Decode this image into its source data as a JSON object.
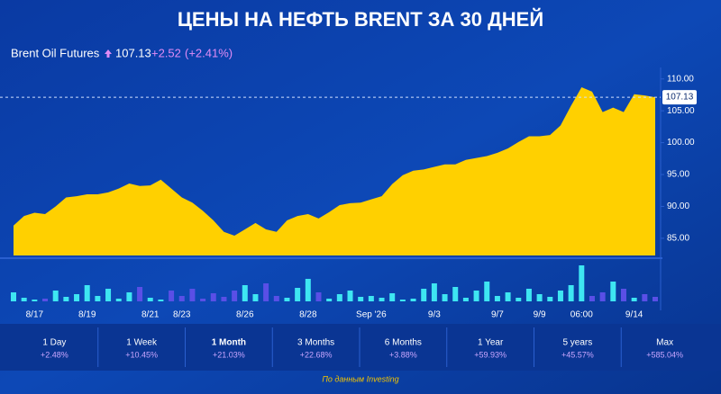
{
  "chart_data": {
    "type": "area",
    "title": "ЦЕНЫ НА НЕФТЬ BRENT ЗА 30 ДНЕЙ",
    "header": {
      "name": "Brent Oil Futures",
      "price": 107.13,
      "change": "+2.52",
      "change_pct": "(+2.41%)"
    },
    "categories": [
      null,
      null,
      "8/17",
      null,
      null,
      null,
      null,
      "8/19",
      null,
      null,
      null,
      null,
      null,
      "8/21",
      null,
      null,
      "8/23",
      null,
      null,
      null,
      null,
      null,
      "8/26",
      null,
      null,
      null,
      null,
      null,
      "8/28",
      null,
      null,
      null,
      null,
      null,
      "Sep '26",
      null,
      null,
      null,
      null,
      null,
      "9/3",
      null,
      null,
      null,
      null,
      null,
      "9/7",
      null,
      null,
      null,
      "9/9",
      null,
      null,
      null,
      "06:00",
      null,
      null,
      null,
      null,
      "9/14",
      null,
      null
    ],
    "series": [
      {
        "color": "#ffd000",
        "values": [
          87.0,
          88.5,
          89.0,
          88.8,
          90.0,
          91.4,
          91.6,
          91.9,
          91.9,
          92.2,
          92.8,
          93.6,
          93.2,
          93.3,
          94.2,
          92.8,
          91.4,
          90.6,
          89.3,
          87.8,
          86.0,
          85.4,
          86.4,
          87.4,
          86.4,
          86.0,
          87.8,
          88.5,
          88.8,
          88.1,
          89.1,
          90.2,
          90.5,
          90.6,
          91.1,
          91.6,
          93.5,
          94.9,
          95.6,
          95.8,
          96.2,
          96.6,
          96.6,
          97.3,
          97.6,
          97.9,
          98.4,
          99.1,
          100.1,
          101.0,
          101.0,
          101.2,
          102.7,
          105.8,
          108.7,
          108.0,
          104.8,
          105.5,
          104.8,
          107.6,
          107.4,
          107.13
        ]
      }
    ],
    "ylim": [
      82.3,
      111.8
    ],
    "yticks": [
      {
        "value": 85,
        "label": "85.00"
      },
      {
        "value": 90,
        "label": "90.00"
      },
      {
        "value": 95,
        "label": "95.00"
      },
      {
        "value": 100,
        "label": "100.00"
      },
      {
        "value": 105,
        "label": "105.00"
      },
      {
        "value": 110,
        "label": "110.00"
      }
    ],
    "volume": {
      "values": [
        10,
        4,
        2,
        3,
        12,
        5,
        8,
        18,
        6,
        14,
        3,
        10,
        16,
        4,
        2,
        12,
        6,
        14,
        3,
        9,
        5,
        12,
        18,
        8,
        20,
        6,
        4,
        15,
        25,
        10,
        3,
        8,
        12,
        5,
        6,
        4,
        9,
        2,
        3,
        14,
        20,
        8,
        16,
        4,
        12,
        22,
        6,
        10,
        4,
        14,
        8,
        5,
        12,
        18,
        40,
        6,
        10,
        22,
        14,
        4,
        8,
        5
      ],
      "ylim": [
        0,
        45
      ],
      "up_color": "#3ee6f2",
      "down_color": "#5a4fe6"
    },
    "periods": [
      {
        "label": "1 Day",
        "change": "+2.48%",
        "active": false
      },
      {
        "label": "1 Week",
        "change": "+10.45%",
        "active": false
      },
      {
        "label": "1 Month",
        "change": "+21.03%",
        "active": true
      },
      {
        "label": "3 Months",
        "change": "+22.68%",
        "active": false
      },
      {
        "label": "6 Months",
        "change": "+3.88%",
        "active": false
      },
      {
        "label": "1 Year",
        "change": "+59.93%",
        "active": false
      },
      {
        "label": "5 years",
        "change": "+45.57%",
        "active": false
      },
      {
        "label": "Max",
        "change": "+585.04%",
        "active": false
      }
    ],
    "source": "По данным Investing"
  }
}
